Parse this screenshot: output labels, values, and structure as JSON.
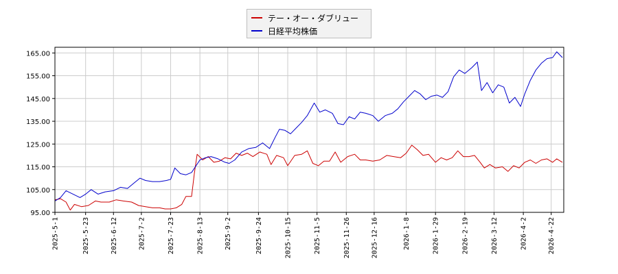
{
  "chart_data": {
    "type": "line",
    "ylim": [
      95,
      167.5
    ],
    "yticks": [
      95,
      105,
      115,
      125,
      135,
      145,
      155,
      165
    ],
    "ytick_labels": [
      "95.00",
      "105.00",
      "115.00",
      "125.00",
      "135.00",
      "145.00",
      "155.00",
      "165.00"
    ],
    "xticks": [
      "2025-5-1",
      "2025-5-23",
      "2025-6-12",
      "2025-7-2",
      "2025-7-23",
      "2025-8-13",
      "2025-9-2",
      "2025-9-24",
      "2025-10-15",
      "2025-11-5",
      "2025-11-26",
      "2025-12-16",
      "2026-1-8",
      "2026-1-29",
      "2026-2-19",
      "2026-3-12",
      "2026-4-2",
      "2026-4-22"
    ],
    "xrange": [
      "2025-5-1",
      "2026-5-1"
    ],
    "grid": true,
    "legend_position": "top-center",
    "series": [
      {
        "name": "テー・オー・ダブリュー",
        "color": "#cc0000",
        "points": [
          [
            "2025-5-1",
            100.5
          ],
          [
            "2025-5-5",
            101.0
          ],
          [
            "2025-5-9",
            99.5
          ],
          [
            "2025-5-12",
            96.0
          ],
          [
            "2025-5-15",
            98.5
          ],
          [
            "2025-5-20",
            97.5
          ],
          [
            "2025-5-25",
            98.0
          ],
          [
            "2025-5-30",
            100.0
          ],
          [
            "2025-6-3",
            99.5
          ],
          [
            "2025-6-9",
            99.5
          ],
          [
            "2025-6-14",
            100.5
          ],
          [
            "2025-6-19",
            100.0
          ],
          [
            "2025-6-25",
            99.5
          ],
          [
            "2025-6-30",
            98.0
          ],
          [
            "2025-7-5",
            97.5
          ],
          [
            "2025-7-10",
            97.0
          ],
          [
            "2025-7-15",
            97.0
          ],
          [
            "2025-7-19",
            96.5
          ],
          [
            "2025-7-23",
            96.5
          ],
          [
            "2025-7-27",
            97.0
          ],
          [
            "2025-7-31",
            98.5
          ],
          [
            "2025-8-3",
            102.0
          ],
          [
            "2025-8-7",
            102.0
          ],
          [
            "2025-8-9",
            112.0
          ],
          [
            "2025-8-11",
            120.5
          ],
          [
            "2025-8-15",
            118.0
          ],
          [
            "2025-8-19",
            119.5
          ],
          [
            "2025-8-23",
            117.0
          ],
          [
            "2025-8-27",
            117.5
          ],
          [
            "2025-8-31",
            119.0
          ],
          [
            "2025-9-4",
            118.5
          ],
          [
            "2025-9-8",
            121.0
          ],
          [
            "2025-9-12",
            120.0
          ],
          [
            "2025-9-16",
            121.0
          ],
          [
            "2025-9-20",
            119.5
          ],
          [
            "2025-9-25",
            121.5
          ],
          [
            "2025-9-30",
            120.5
          ],
          [
            "2025-10-3",
            116.0
          ],
          [
            "2025-10-7",
            120.0
          ],
          [
            "2025-10-12",
            119.0
          ],
          [
            "2025-10-15",
            115.5
          ],
          [
            "2025-10-20",
            120.0
          ],
          [
            "2025-10-25",
            120.5
          ],
          [
            "2025-10-29",
            122.0
          ],
          [
            "2025-11-2",
            116.5
          ],
          [
            "2025-11-6",
            115.5
          ],
          [
            "2025-11-10",
            117.5
          ],
          [
            "2025-11-14",
            117.5
          ],
          [
            "2025-11-18",
            121.5
          ],
          [
            "2025-11-22",
            117.0
          ],
          [
            "2025-11-27",
            119.5
          ],
          [
            "2025-12-2",
            120.5
          ],
          [
            "2025-12-6",
            118.0
          ],
          [
            "2025-12-10",
            118.0
          ],
          [
            "2025-12-15",
            117.5
          ],
          [
            "2025-12-20",
            118.0
          ],
          [
            "2025-12-25",
            120.0
          ],
          [
            "2025-12-30",
            119.5
          ],
          [
            "2026-1-4",
            119.0
          ],
          [
            "2026-1-8",
            121.0
          ],
          [
            "2026-1-12",
            124.5
          ],
          [
            "2026-1-16",
            122.5
          ],
          [
            "2026-1-20",
            120.0
          ],
          [
            "2026-1-24",
            120.5
          ],
          [
            "2026-1-29",
            117.0
          ],
          [
            "2026-2-2",
            119.0
          ],
          [
            "2026-2-6",
            118.0
          ],
          [
            "2026-2-10",
            119.0
          ],
          [
            "2026-2-14",
            122.0
          ],
          [
            "2026-2-18",
            119.5
          ],
          [
            "2026-2-22",
            119.5
          ],
          [
            "2026-2-26",
            120.0
          ],
          [
            "2026-3-2",
            117.0
          ],
          [
            "2026-3-5",
            114.5
          ],
          [
            "2026-3-9",
            116.0
          ],
          [
            "2026-3-13",
            114.5
          ],
          [
            "2026-3-18",
            115.0
          ],
          [
            "2026-3-22",
            113.0
          ],
          [
            "2026-3-26",
            115.5
          ],
          [
            "2026-3-30",
            114.5
          ],
          [
            "2026-4-3",
            117.0
          ],
          [
            "2026-4-7",
            118.0
          ],
          [
            "2026-4-11",
            116.5
          ],
          [
            "2026-4-15",
            118.0
          ],
          [
            "2026-4-19",
            118.5
          ],
          [
            "2026-4-23",
            117.0
          ],
          [
            "2026-4-26",
            118.5
          ],
          [
            "2026-4-30",
            117.0
          ]
        ]
      },
      {
        "name": "日経平均株価",
        "color": "#0000cc",
        "points": [
          [
            "2025-5-1",
            100.0
          ],
          [
            "2025-5-5",
            101.5
          ],
          [
            "2025-5-9",
            104.5
          ],
          [
            "2025-5-14",
            103.0
          ],
          [
            "2025-5-19",
            101.5
          ],
          [
            "2025-5-23",
            103.0
          ],
          [
            "2025-5-27",
            105.0
          ],
          [
            "2025-6-1",
            103.0
          ],
          [
            "2025-6-6",
            104.0
          ],
          [
            "2025-6-12",
            104.5
          ],
          [
            "2025-6-17",
            106.0
          ],
          [
            "2025-6-22",
            105.5
          ],
          [
            "2025-6-27",
            108.0
          ],
          [
            "2025-7-1",
            110.0
          ],
          [
            "2025-7-5",
            109.0
          ],
          [
            "2025-7-10",
            108.5
          ],
          [
            "2025-7-15",
            108.5
          ],
          [
            "2025-7-20",
            109.0
          ],
          [
            "2025-7-23",
            109.5
          ],
          [
            "2025-7-26",
            114.5
          ],
          [
            "2025-7-30",
            112.0
          ],
          [
            "2025-8-3",
            111.5
          ],
          [
            "2025-8-7",
            112.5
          ],
          [
            "2025-8-13",
            118.0
          ],
          [
            "2025-8-17",
            119.0
          ],
          [
            "2025-8-21",
            119.5
          ],
          [
            "2025-8-26",
            118.5
          ],
          [
            "2025-8-31",
            117.0
          ],
          [
            "2025-9-3",
            116.5
          ],
          [
            "2025-9-7",
            118.0
          ],
          [
            "2025-9-12",
            121.5
          ],
          [
            "2025-9-17",
            123.0
          ],
          [
            "2025-9-22",
            123.5
          ],
          [
            "2025-9-27",
            125.5
          ],
          [
            "2025-10-2",
            123.0
          ],
          [
            "2025-10-6",
            128.0
          ],
          [
            "2025-10-9",
            131.5
          ],
          [
            "2025-10-13",
            131.0
          ],
          [
            "2025-10-17",
            129.5
          ],
          [
            "2025-10-21",
            132.0
          ],
          [
            "2025-10-25",
            134.5
          ],
          [
            "2025-10-29",
            137.5
          ],
          [
            "2025-11-3",
            143.0
          ],
          [
            "2025-11-7",
            139.0
          ],
          [
            "2025-11-11",
            140.0
          ],
          [
            "2025-11-16",
            138.5
          ],
          [
            "2025-11-20",
            134.0
          ],
          [
            "2025-11-24",
            133.5
          ],
          [
            "2025-11-28",
            137.0
          ],
          [
            "2025-12-2",
            136.0
          ],
          [
            "2025-12-6",
            139.0
          ],
          [
            "2025-12-10",
            138.5
          ],
          [
            "2025-12-15",
            137.5
          ],
          [
            "2025-12-19",
            135.0
          ],
          [
            "2025-12-24",
            137.5
          ],
          [
            "2025-12-29",
            138.5
          ],
          [
            "2026-1-2",
            140.5
          ],
          [
            "2026-1-6",
            143.5
          ],
          [
            "2026-1-10",
            146.0
          ],
          [
            "2026-1-14",
            148.5
          ],
          [
            "2026-1-18",
            147.0
          ],
          [
            "2026-1-22",
            144.5
          ],
          [
            "2026-1-26",
            146.0
          ],
          [
            "2026-1-30",
            146.5
          ],
          [
            "2026-2-3",
            145.5
          ],
          [
            "2026-2-7",
            148.0
          ],
          [
            "2026-2-11",
            154.5
          ],
          [
            "2026-2-15",
            157.5
          ],
          [
            "2026-2-19",
            156.0
          ],
          [
            "2026-2-24",
            158.5
          ],
          [
            "2026-2-28",
            161.0
          ],
          [
            "2026-3-3",
            148.5
          ],
          [
            "2026-3-7",
            152.0
          ],
          [
            "2026-3-11",
            147.5
          ],
          [
            "2026-3-15",
            151.0
          ],
          [
            "2026-3-19",
            150.0
          ],
          [
            "2026-3-23",
            143.0
          ],
          [
            "2026-3-27",
            145.5
          ],
          [
            "2026-3-31",
            141.5
          ],
          [
            "2026-4-3",
            147.0
          ],
          [
            "2026-4-7",
            153.0
          ],
          [
            "2026-4-11",
            157.5
          ],
          [
            "2026-4-15",
            160.5
          ],
          [
            "2026-4-19",
            162.5
          ],
          [
            "2026-4-23",
            163.0
          ],
          [
            "2026-4-26",
            165.5
          ],
          [
            "2026-4-30",
            163.0
          ]
        ]
      }
    ]
  }
}
